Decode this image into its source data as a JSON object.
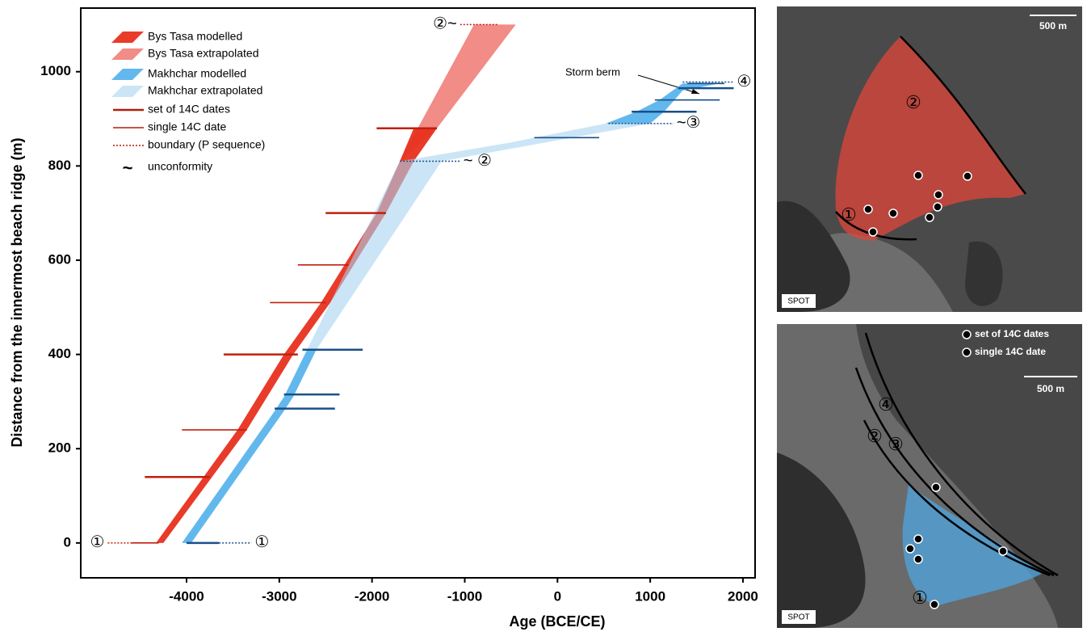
{
  "chart_data": {
    "type": "polygon",
    "x_label": "Age (BCE/CE)",
    "y_label": "Distance from the innermost beach ridge (m)",
    "xlim": [
      -5141,
      2131
    ],
    "ylim": [
      -74,
      1135
    ],
    "xticks": [
      -4000,
      -3000,
      -2000,
      -1000,
      0,
      1000,
      2000
    ],
    "yticks": [
      0,
      200,
      400,
      600,
      800,
      1000
    ],
    "series": [
      {
        "name": "Bys Tasa modelled",
        "color": "#e8301e",
        "opacity": 0.95,
        "parts": [
          {
            "x": [
              -4330,
              -3450,
              -2950,
              -2550,
              -1950,
              -1700,
              -1550,
              -1300,
              -1550,
              -1850,
              -2450,
              -2850,
              -3350,
              -4250
            ],
            "y": [
              0,
              240,
              400,
              510,
              700,
              810,
              880,
              880,
              810,
              700,
              510,
              400,
              240,
              0
            ]
          }
        ]
      },
      {
        "name": "Bys Tasa extrapolated",
        "color": "#f07f79",
        "opacity": 0.9,
        "parts": [
          {
            "x": [
              -1700,
              -900,
              -450,
              -1300
            ],
            "y": [
              810,
              1100,
              1100,
              880
            ]
          }
        ]
      },
      {
        "name": "Makhchar modelled",
        "color": "#5ab4ec",
        "opacity": 0.95,
        "parts": [
          {
            "x": [
              -4050,
              -3050,
              -2950,
              -2700,
              -2600,
              -2850,
              -2950,
              -3950
            ],
            "y": [
              0,
              280,
              310,
              410,
              410,
              310,
              280,
              0
            ]
          },
          {
            "x": [
              520,
              850,
              1100,
              1350,
              1750,
              1350,
              1150,
              1000
            ],
            "y": [
              890,
              915,
              940,
              975,
              975,
              960,
              915,
              890
            ]
          }
        ]
      },
      {
        "name": "Makhchar extrapolated",
        "color": "#a9d3f2",
        "opacity": 0.6,
        "parts": [
          {
            "x": [
              -2700,
              -1700,
              -500,
              520,
              1000,
              -1250,
              -2600
            ],
            "y": [
              410,
              810,
              850,
              890,
              890,
              810,
              410
            ]
          }
        ]
      }
    ],
    "draw_order": [
      1,
      0,
      3,
      2
    ],
    "legend_lines": [
      {
        "name": "set of 14C dates",
        "style": "thick"
      },
      {
        "name": "single 14C date",
        "style": "thin"
      },
      {
        "name": "boundary (P sequence)",
        "style": "dotted"
      },
      {
        "name": "unconformity",
        "style": "tilde",
        "symbol": "~"
      }
    ],
    "legend_line_color": "#b01e0e",
    "dates": [
      {
        "y": 880,
        "x": [
          -1950,
          -1300
        ],
        "color": "#c0200e",
        "set": true
      },
      {
        "y": 700,
        "x": [
          -2500,
          -1850
        ],
        "color": "#c0200e",
        "set": true
      },
      {
        "y": 590,
        "x": [
          -2800,
          -2250
        ],
        "color": "#c0200e",
        "set": false
      },
      {
        "y": 510,
        "x": [
          -3100,
          -2500
        ],
        "color": "#c0200e",
        "set": false
      },
      {
        "y": 400,
        "x": [
          -3600,
          -2800
        ],
        "color": "#c0200e",
        "set": true
      },
      {
        "y": 240,
        "x": [
          -4050,
          -3350
        ],
        "color": "#c0200e",
        "set": false
      },
      {
        "y": 140,
        "x": [
          -4450,
          -3750
        ],
        "color": "#c0200e",
        "set": true
      },
      {
        "y": 0,
        "x": [
          -4600,
          -4300
        ],
        "color": "#c0200e",
        "set": false
      },
      {
        "y": 0,
        "x": [
          -4000,
          -3650
        ],
        "color": "#1a4f8a",
        "set": true
      },
      {
        "y": 410,
        "x": [
          -2750,
          -2100
        ],
        "color": "#1a4f8a",
        "set": true
      },
      {
        "y": 315,
        "x": [
          -2950,
          -2350
        ],
        "color": "#1a4f8a",
        "set": true
      },
      {
        "y": 285,
        "x": [
          -3050,
          -2400
        ],
        "color": "#1a4f8a",
        "set": true
      },
      {
        "y": 860,
        "x": [
          -250,
          450
        ],
        "color": "#1a4f8a",
        "set": false
      },
      {
        "y": 915,
        "x": [
          800,
          1500
        ],
        "color": "#1a4f8a",
        "set": true
      },
      {
        "y": 940,
        "x": [
          1050,
          1750
        ],
        "color": "#1a4f8a",
        "set": false
      },
      {
        "y": 965,
        "x": [
          1300,
          1900
        ],
        "color": "#1a4f8a",
        "set": true
      },
      {
        "y": 975,
        "x": [
          1400,
          1800
        ],
        "color": "#1a4f8a",
        "set": false
      }
    ],
    "boundaries": [
      {
        "y": 0,
        "x": [
          -4850,
          -4600
        ],
        "color": "#c0200e",
        "label": "①",
        "side": "left"
      },
      {
        "y": 0,
        "x": [
          -3650,
          -3300
        ],
        "color": "#1a4f8a",
        "label": "①",
        "side": "right"
      },
      {
        "y": 1100,
        "x": [
          -1050,
          -650
        ],
        "color": "#c0200e",
        "label": "②~",
        "side": "left"
      },
      {
        "y": 810,
        "x": [
          -1700,
          -1050
        ],
        "color": "#1a4f8a",
        "label": "~ ②",
        "side": "right"
      },
      {
        "y": 890,
        "x": [
          550,
          1250
        ],
        "color": "#1a4f8a",
        "label": "~③",
        "side": "right"
      },
      {
        "y": 978,
        "x": [
          1350,
          1900
        ],
        "color": "#1a4f8a",
        "label": "④",
        "side": "right"
      }
    ],
    "annotations": [
      "Storm berm"
    ]
  },
  "maps": [
    {
      "scale": "500 m",
      "source": "SPOT",
      "labels": [
        "②",
        "①"
      ]
    },
    {
      "legend": [
        "set of 14C dates",
        "single 14C date"
      ],
      "scale": "500 m",
      "source": "SPOT",
      "labels": [
        "④",
        "②",
        "③",
        "①"
      ]
    }
  ]
}
